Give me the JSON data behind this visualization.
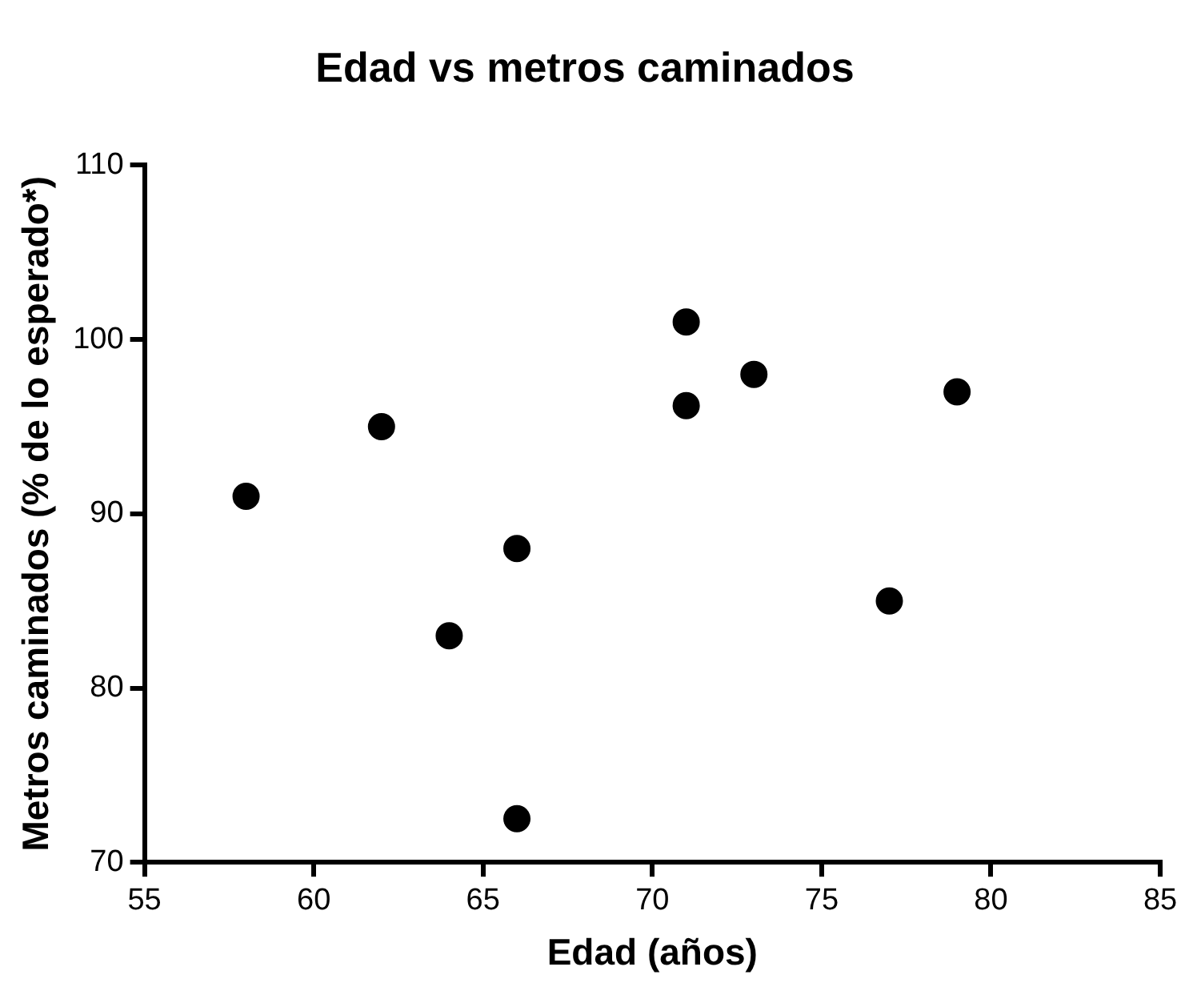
{
  "chart_data": {
    "type": "scatter",
    "title": "Edad vs metros caminados",
    "xlabel": "Edad (años)",
    "ylabel": "Metros caminados (% de lo esperado*)",
    "x": [
      58,
      62,
      64,
      66,
      66,
      71,
      71,
      73,
      77,
      79
    ],
    "series": [
      {
        "color": "#000000",
        "values": [
          91,
          95,
          83,
          88,
          72.5,
          101,
          96.2,
          98,
          85,
          97
        ]
      }
    ],
    "xlim": [
      55,
      85
    ],
    "xticks": [
      55,
      60,
      65,
      70,
      75,
      80,
      85
    ],
    "ylim": [
      70,
      110
    ],
    "yticks": [
      70,
      80,
      90,
      100,
      110
    ],
    "grid": false,
    "legend": false,
    "marker": "circle"
  }
}
